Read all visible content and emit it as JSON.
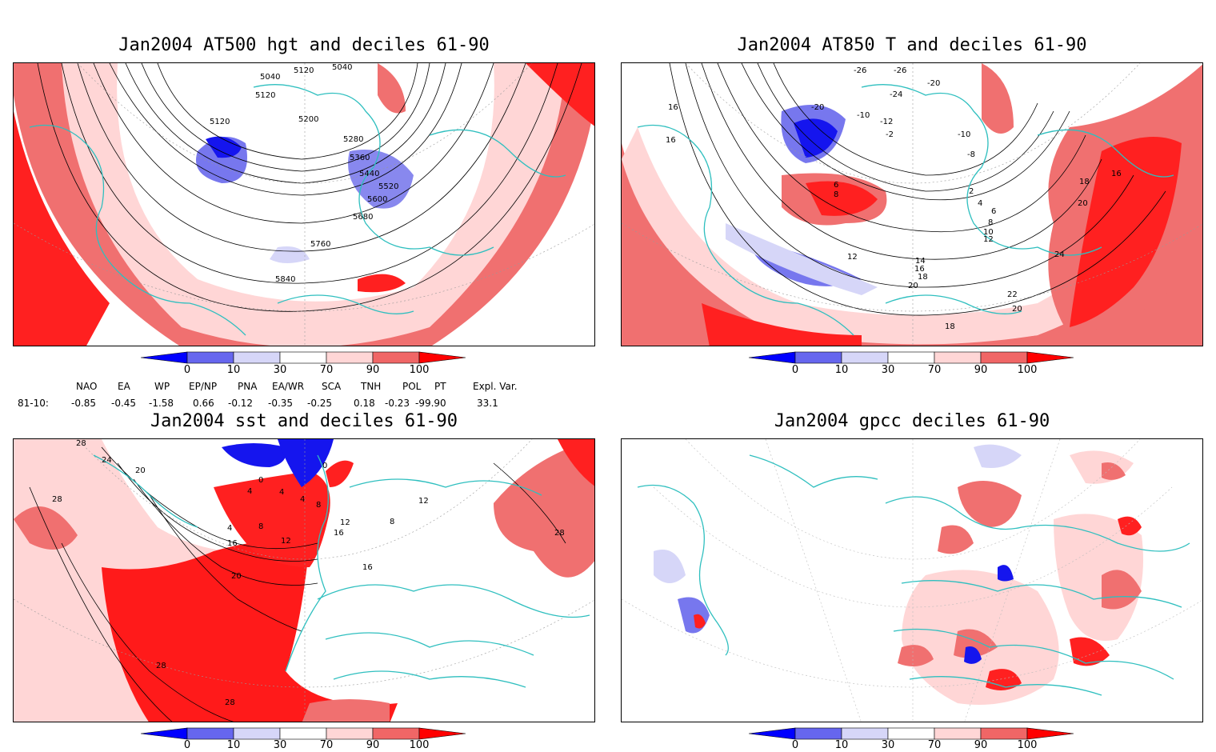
{
  "panels": [
    {
      "title": "Jan2004 AT500 hgt and deciles 61-90",
      "contour_labels": [
        "5040",
        "5040",
        "5120",
        "5120",
        "5120",
        "5200",
        "5280",
        "5360",
        "5440",
        "5520",
        "5600",
        "5680",
        "5760",
        "5840"
      ]
    },
    {
      "title": "Jan2004 AT850 T and deciles 61-90",
      "contour_labels": [
        "-26",
        "-26",
        "-24",
        "-20",
        "-20",
        "-10",
        "-12",
        "-2",
        "-10",
        "-8",
        "16",
        "16",
        "6",
        "8",
        "2",
        "4",
        "6",
        "8",
        "10",
        "12",
        "12",
        "14",
        "16",
        "18",
        "20",
        "18",
        "20",
        "16",
        "24",
        "22",
        "20",
        "18"
      ]
    },
    {
      "title": "Jan2004 sst and deciles 61-90",
      "contour_labels": [
        "28",
        "24",
        "20",
        "28",
        "0",
        "4",
        "0",
        "4",
        "4",
        "8",
        "4",
        "8",
        "12",
        "16",
        "12",
        "16",
        "20",
        "28",
        "28",
        "28",
        "16",
        "12",
        "8"
      ]
    },
    {
      "title": "Jan2004 gpcc deciles 61-90",
      "contour_labels": []
    }
  ],
  "colorbar": {
    "ticks": [
      "0",
      "10",
      "30",
      "70",
      "90",
      "100"
    ],
    "colors": [
      "#0000ff",
      "#6666ee",
      "#d6d6f8",
      "#ffffff",
      "#ffd6d6",
      "#f06666",
      "#ff0000"
    ]
  },
  "teleconnections": {
    "headers": [
      "NAO",
      "EA",
      "WP",
      "EP/NP",
      "PNA",
      "EA/WR",
      "SCA",
      "TNH",
      "POL",
      "PT",
      "Expl. Var."
    ],
    "row_label": "81-10:",
    "values": [
      "-0.85",
      "-0.45",
      "-1.58",
      "0.66",
      "-0.12",
      "-0.35",
      "-0.25",
      "0.18",
      "-0.23",
      "-99.90",
      "33.1"
    ]
  }
}
